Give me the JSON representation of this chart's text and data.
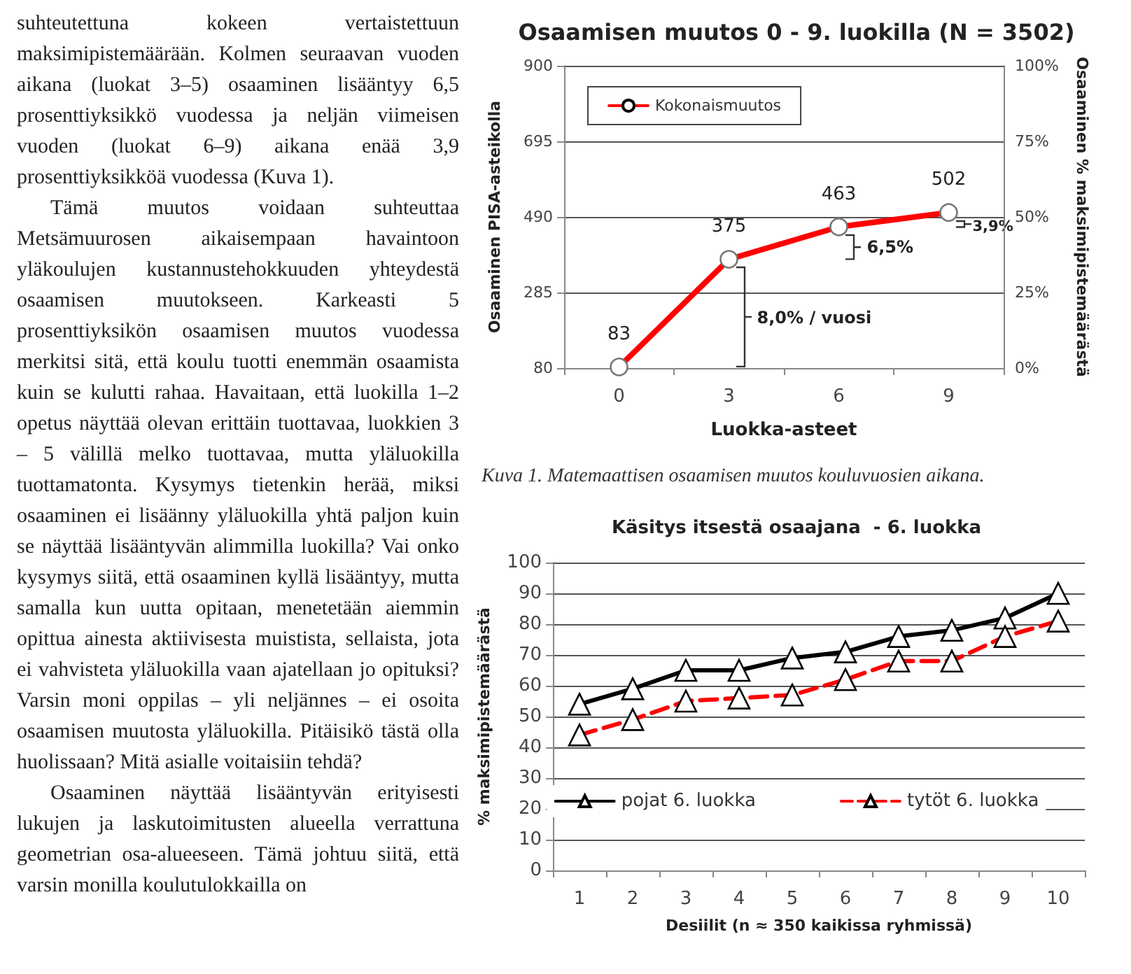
{
  "chart_data": [
    {
      "type": "other",
      "annotations": [
        "suhteutettuna kokeen vertaistettuun maksimipistemäärään. Kolmen seuraavan vuoden aikana (luokat 3–5) osaaminen lisääntyy 6,5 prosenttiyksikkö vuodessa ja neljän viimeisen vuoden (luokat 6–9) aikana enää 3,9 prosenttiyksikköä vuodessa (Kuva 1).",
        "Tämä muutos voidaan suhteuttaa Metsämuurosen aikaisempaan havaintoon yläkoulujen kustannustehokkuuden yhteydestä osaamisen muutokseen. Karkeasti 5 prosenttiyksikön osaamisen muutos vuodessa merkitsi sitä, että koulu tuotti enemmän osaamista kuin se kulutti rahaa. Havaitaan, että luokilla 1–2 opetus näyttää olevan erittäin tuottavaa, luokkien 3 – 5 välillä melko tuottavaa, mutta yläluokilla tuottamatonta. Kysymys tietenkin herää, miksi osaaminen ei lisäänny yläluokilla yhtä paljon kuin se näyttää lisääntyvän alimmilla luokilla? Vai onko kysymys siitä, että osaaminen kyllä lisääntyy, mutta samalla kun uutta opitaan, menetetään aiemmin opittua ainesta aktiivisesta muistista, sellaista, jota ei vahvisteta yläluokilla vaan ajatellaan jo opituksi? Varsin moni oppilas – yli neljännes – ei osoita osaamisen muutosta yläluokilla. Pitäisikö tästä olla huolissaan? Mitä asialle voitaisiin tehdä?",
        "Osaaminen näyttää lisääntyvän erityisesti lukujen ja laskutoimitusten alueella verrattuna geometrian osa-alueeseen. Tämä johtuu siitä, että varsin monilla koulutulokkailla on"
      ]
    },
    {
      "type": "line",
      "title": "Osaamisen muutos 0 - 9. luokilla (N = 3502)",
      "xlabel": "Luokka-asteet",
      "ylabel": "Osaaminen PISA-asteikolla",
      "y2label": "Osaaminen % maksimipistemäärästä",
      "categories": [
        "0",
        "3",
        "6",
        "9"
      ],
      "series": [
        {
          "name": "Kokonaismuutos",
          "color": "#ff0000",
          "values": [
            83,
            375,
            463,
            502
          ]
        }
      ],
      "ylim": [
        80,
        900
      ],
      "yticks": [
        80,
        285,
        490,
        695,
        900
      ],
      "y2lim": [
        0,
        100
      ],
      "y2ticks": [
        {
          "value": 0,
          "label": "0%"
        },
        {
          "value": 25,
          "label": "25%"
        },
        {
          "value": 50,
          "label": "50%"
        },
        {
          "value": 75,
          "label": "75%"
        },
        {
          "value": 100,
          "label": "100%"
        }
      ],
      "data_labels": true,
      "grid": "y",
      "legend": "top left",
      "marker": "circle",
      "annotations": [
        "8,0% / vuosi",
        "6,5%",
        "3,9%",
        "Kuva 1. Matemaattisen osaamisen muutos kouluvuosien aikana."
      ]
    },
    {
      "type": "line",
      "title": "Käsitys itsestä osaajana  - 6. luokka",
      "xlabel": "Desiilit (n ≈ 350 kaikissa ryhmissä)",
      "ylabel": "% maksimipistemäärästä",
      "categories": [
        "1",
        "2",
        "3",
        "4",
        "5",
        "6",
        "7",
        "8",
        "9",
        "10"
      ],
      "series": [
        {
          "name": "pojat 6. luokka",
          "color": "#000000",
          "line_style": "solid",
          "values": [
            54,
            59,
            65,
            65,
            69,
            71,
            76,
            78,
            82,
            90
          ]
        },
        {
          "name": "tytöt 6. luokka",
          "color": "#ff0000",
          "line_style": "dashed",
          "values": [
            44,
            49,
            55,
            56,
            57,
            62,
            68,
            68,
            76,
            81
          ]
        }
      ],
      "ylim": [
        0,
        100
      ],
      "yticks": [
        0,
        10,
        20,
        30,
        40,
        50,
        60,
        70,
        80,
        90,
        100
      ],
      "grid": "y",
      "legend": "bottom",
      "marker": "triangle"
    }
  ]
}
